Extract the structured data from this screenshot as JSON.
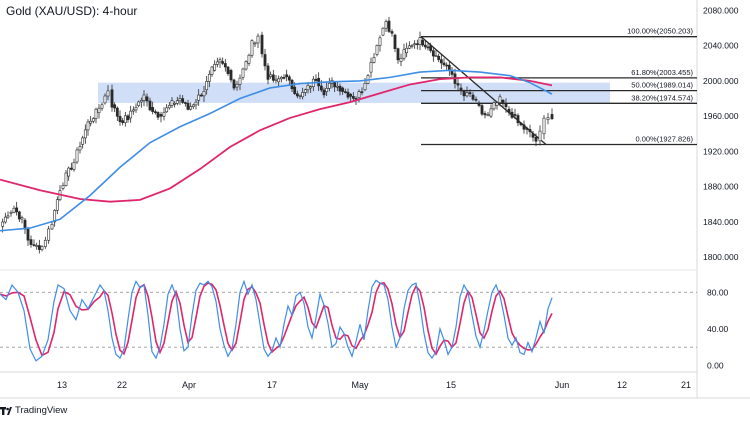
{
  "title": "Gold (XAU/USD): 4-hour",
  "footer": {
    "brand": "TradingView"
  },
  "colors": {
    "candle_up": "#2a2a2a",
    "candle_down": "#2a2a2a",
    "sma_fast": "#3f8ee6",
    "sma_slow": "#e0256b",
    "zone": "#c8d8f6",
    "fib": "#2a2a2a",
    "stoch_k": "#3f8ee6",
    "stoch_d": "#e0256b"
  },
  "chart_data": [
    {
      "type": "candlestick",
      "x_ticks": [
        "13",
        "22",
        "Apr",
        "17",
        "May",
        "15",
        "Jun",
        "12",
        "21"
      ],
      "y_ticks": [
        "2080.000",
        "2040.000",
        "2000.000",
        "1960.000",
        "1920.000",
        "1880.000",
        "1840.000",
        "1800.000"
      ],
      "ylim": [
        1790,
        2085
      ],
      "support_resistance_zone": [
        1975,
        1998
      ],
      "fibonacci_levels": [
        {
          "label": "100.00%(2050.203)",
          "ratio": 1.0,
          "price": 2050.203
        },
        {
          "label": "61.80%(2003.455)",
          "ratio": 0.618,
          "price": 2003.455
        },
        {
          "label": "50.00%(1989.014)",
          "ratio": 0.5,
          "price": 1989.014
        },
        {
          "label": "38.20%(1974.574)",
          "ratio": 0.382,
          "price": 1974.574
        },
        {
          "label": "0.00%(1927.826)",
          "ratio": 0.0,
          "price": 1927.826
        }
      ],
      "candle_path": [
        [
          0,
          1835
        ],
        [
          8,
          1850
        ],
        [
          14,
          1856
        ],
        [
          22,
          1842
        ],
        [
          28,
          1820
        ],
        [
          34,
          1812
        ],
        [
          42,
          1812
        ],
        [
          52,
          1840
        ],
        [
          60,
          1878
        ],
        [
          66,
          1892
        ],
        [
          74,
          1908
        ],
        [
          80,
          1928
        ],
        [
          88,
          1952
        ],
        [
          96,
          1964
        ],
        [
          102,
          1975
        ],
        [
          108,
          1990
        ],
        [
          112,
          1973
        ],
        [
          120,
          1955
        ],
        [
          128,
          1958
        ],
        [
          136,
          1972
        ],
        [
          144,
          1982
        ],
        [
          150,
          1970
        ],
        [
          158,
          1962
        ],
        [
          164,
          1965
        ],
        [
          172,
          1974
        ],
        [
          180,
          1980
        ],
        [
          188,
          1968
        ],
        [
          196,
          1978
        ],
        [
          204,
          1990
        ],
        [
          212,
          2012
        ],
        [
          220,
          2022
        ],
        [
          228,
          2012
        ],
        [
          234,
          1993
        ],
        [
          240,
          2004
        ],
        [
          246,
          2020
        ],
        [
          252,
          2042
        ],
        [
          258,
          2052
        ],
        [
          262,
          2030
        ],
        [
          268,
          2005
        ],
        [
          276,
          1999
        ],
        [
          284,
          2007
        ],
        [
          292,
          1993
        ],
        [
          300,
          1982
        ],
        [
          308,
          1992
        ],
        [
          316,
          2003
        ],
        [
          324,
          1988
        ],
        [
          332,
          1998
        ],
        [
          340,
          1992
        ],
        [
          348,
          1985
        ],
        [
          356,
          1981
        ],
        [
          362,
          1990
        ],
        [
          368,
          2010
        ],
        [
          374,
          2030
        ],
        [
          380,
          2052
        ],
        [
          386,
          2068
        ],
        [
          392,
          2052
        ],
        [
          398,
          2022
        ],
        [
          404,
          2032
        ],
        [
          412,
          2042
        ],
        [
          420,
          2046
        ],
        [
          428,
          2040
        ],
        [
          436,
          2028
        ],
        [
          444,
          2018
        ],
        [
          452,
          2008
        ],
        [
          458,
          1992
        ],
        [
          464,
          1983
        ],
        [
          470,
          1984
        ],
        [
          476,
          1975
        ],
        [
          482,
          1963
        ],
        [
          488,
          1960
        ],
        [
          494,
          1972
        ],
        [
          500,
          1978
        ],
        [
          506,
          1968
        ],
        [
          512,
          1962
        ],
        [
          518,
          1952
        ],
        [
          524,
          1946
        ],
        [
          530,
          1940
        ],
        [
          536,
          1932
        ],
        [
          540,
          1940
        ],
        [
          544,
          1956
        ],
        [
          548,
          1962
        ],
        [
          552,
          1958
        ]
      ],
      "sma_fast": [
        [
          0,
          1830
        ],
        [
          30,
          1833
        ],
        [
          60,
          1843
        ],
        [
          90,
          1870
        ],
        [
          120,
          1902
        ],
        [
          150,
          1930
        ],
        [
          180,
          1948
        ],
        [
          210,
          1963
        ],
        [
          240,
          1980
        ],
        [
          270,
          1992
        ],
        [
          300,
          1997
        ],
        [
          330,
          1999
        ],
        [
          360,
          2000
        ],
        [
          390,
          2004
        ],
        [
          420,
          2010
        ],
        [
          450,
          2012
        ],
        [
          480,
          2010
        ],
        [
          510,
          2006
        ],
        [
          530,
          1998
        ],
        [
          552,
          1985
        ]
      ],
      "sma_slow": [
        [
          0,
          1888
        ],
        [
          40,
          1876
        ],
        [
          80,
          1866
        ],
        [
          110,
          1863
        ],
        [
          140,
          1865
        ],
        [
          170,
          1878
        ],
        [
          200,
          1900
        ],
        [
          230,
          1925
        ],
        [
          260,
          1944
        ],
        [
          290,
          1958
        ],
        [
          320,
          1968
        ],
        [
          350,
          1976
        ],
        [
          380,
          1986
        ],
        [
          410,
          1996
        ],
        [
          440,
          2002
        ],
        [
          470,
          2004
        ],
        [
          500,
          2004
        ],
        [
          530,
          2000
        ],
        [
          552,
          1995
        ]
      ]
    },
    {
      "type": "line",
      "name": "stochastic",
      "y_ticks": [
        "80.00",
        "40.00",
        "0.00"
      ],
      "ylim": [
        -5,
        100
      ],
      "levels": [
        80,
        20
      ],
      "k": [
        [
          0,
          78
        ],
        [
          6,
          72
        ],
        [
          12,
          88
        ],
        [
          18,
          80
        ],
        [
          24,
          60
        ],
        [
          30,
          18
        ],
        [
          36,
          5
        ],
        [
          42,
          10
        ],
        [
          48,
          28
        ],
        [
          54,
          70
        ],
        [
          58,
          88
        ],
        [
          64,
          84
        ],
        [
          70,
          60
        ],
        [
          76,
          50
        ],
        [
          82,
          72
        ],
        [
          88,
          62
        ],
        [
          94,
          75
        ],
        [
          100,
          88
        ],
        [
          104,
          82
        ],
        [
          108,
          60
        ],
        [
          112,
          30
        ],
        [
          116,
          12
        ],
        [
          120,
          8
        ],
        [
          124,
          18
        ],
        [
          128,
          50
        ],
        [
          132,
          80
        ],
        [
          136,
          92
        ],
        [
          140,
          85
        ],
        [
          144,
          88
        ],
        [
          148,
          55
        ],
        [
          152,
          15
        ],
        [
          156,
          8
        ],
        [
          160,
          20
        ],
        [
          164,
          45
        ],
        [
          168,
          78
        ],
        [
          172,
          88
        ],
        [
          176,
          76
        ],
        [
          180,
          40
        ],
        [
          184,
          16
        ],
        [
          188,
          20
        ],
        [
          192,
          55
        ],
        [
          196,
          82
        ],
        [
          200,
          90
        ],
        [
          204,
          88
        ],
        [
          208,
          92
        ],
        [
          212,
          86
        ],
        [
          216,
          70
        ],
        [
          220,
          40
        ],
        [
          224,
          22
        ],
        [
          228,
          10
        ],
        [
          232,
          18
        ],
        [
          236,
          45
        ],
        [
          240,
          80
        ],
        [
          244,
          92
        ],
        [
          248,
          78
        ],
        [
          252,
          88
        ],
        [
          256,
          72
        ],
        [
          260,
          45
        ],
        [
          264,
          18
        ],
        [
          268,
          10
        ],
        [
          272,
          16
        ],
        [
          276,
          30
        ],
        [
          280,
          20
        ],
        [
          284,
          45
        ],
        [
          288,
          65
        ],
        [
          292,
          55
        ],
        [
          296,
          76
        ],
        [
          300,
          80
        ],
        [
          304,
          68
        ],
        [
          308,
          42
        ],
        [
          312,
          30
        ],
        [
          316,
          52
        ],
        [
          320,
          78
        ],
        [
          324,
          66
        ],
        [
          328,
          46
        ],
        [
          332,
          20
        ],
        [
          336,
          24
        ],
        [
          340,
          42
        ],
        [
          344,
          35
        ],
        [
          348,
          20
        ],
        [
          352,
          10
        ],
        [
          356,
          26
        ],
        [
          360,
          45
        ],
        [
          364,
          28
        ],
        [
          368,
          60
        ],
        [
          372,
          86
        ],
        [
          376,
          93
        ],
        [
          380,
          90
        ],
        [
          384,
          88
        ],
        [
          388,
          72
        ],
        [
          392,
          42
        ],
        [
          396,
          20
        ],
        [
          400,
          30
        ],
        [
          404,
          62
        ],
        [
          408,
          82
        ],
        [
          412,
          88
        ],
        [
          416,
          90
        ],
        [
          420,
          66
        ],
        [
          424,
          35
        ],
        [
          428,
          14
        ],
        [
          432,
          8
        ],
        [
          436,
          15
        ],
        [
          440,
          40
        ],
        [
          444,
          28
        ],
        [
          448,
          12
        ],
        [
          452,
          20
        ],
        [
          456,
          42
        ],
        [
          460,
          75
        ],
        [
          464,
          88
        ],
        [
          468,
          80
        ],
        [
          472,
          55
        ],
        [
          476,
          32
        ],
        [
          480,
          20
        ],
        [
          484,
          38
        ],
        [
          488,
          60
        ],
        [
          492,
          80
        ],
        [
          496,
          88
        ],
        [
          500,
          76
        ],
        [
          504,
          55
        ],
        [
          508,
          30
        ],
        [
          512,
          22
        ],
        [
          516,
          30
        ],
        [
          520,
          14
        ],
        [
          524,
          12
        ],
        [
          528,
          25
        ],
        [
          532,
          15
        ],
        [
          536,
          30
        ],
        [
          540,
          48
        ],
        [
          544,
          35
        ],
        [
          548,
          62
        ],
        [
          552,
          74
        ]
      ]
    }
  ]
}
